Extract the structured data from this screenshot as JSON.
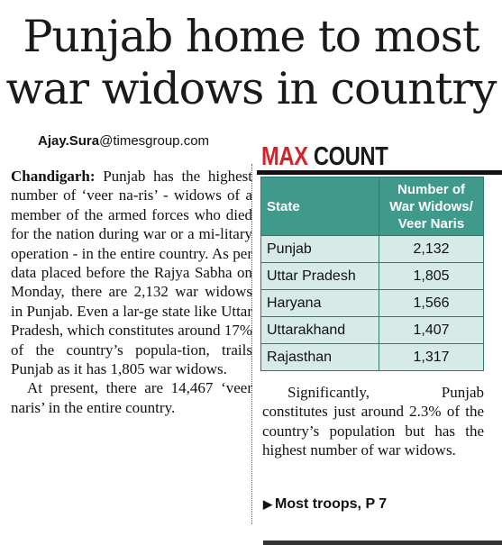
{
  "headline": {
    "line1": "Punjab home to most",
    "line2": "war widows in country"
  },
  "byline": {
    "name": "Ajay.Sura",
    "domain": "@timesgroup.com"
  },
  "article": {
    "dateline": "Chandigarh:",
    "paragraph1": " Punjab has the highest number of ‘veer na-ris’ - widows of a member of the armed forces who died for the nation during war or a mi-litary operation - in the entire country. As per data placed before the Rajya Sabha on Monday, there are 2,132 war widows in Punjab. Even a lar-ge state like Uttar Pradesh, which constitutes around 17% of the country’s popula-tion, trails Punjab as it has 1,805 war widows.",
    "paragraph2": "At present, there are 14,467 ‘veer naris’ in the entire country.",
    "paragraph3": "Significantly, Punjab constitutes just around 2.3% of the country’s population but has the highest number of war widows.",
    "continued": "Most troops, P 7",
    "continued_icon": "right-triangle-icon"
  },
  "box": {
    "title_red": "MAX",
    "title_dark": " COUNT",
    "accent_color": "#d2222b",
    "header_color": "#3f9a8c",
    "row_color": "#d6ebe7"
  },
  "chart_data": {
    "type": "table",
    "title": "MAX COUNT",
    "columns": [
      "State",
      "Number of War Widows/ Veer Naris"
    ],
    "rows": [
      {
        "state": "Punjab",
        "value": "2,132"
      },
      {
        "state": "Uttar Pradesh",
        "value": "1,805"
      },
      {
        "state": "Haryana",
        "value": "1,566"
      },
      {
        "state": "Uttarakhand",
        "value": "1,407"
      },
      {
        "state": "Rajasthan",
        "value": "1,317"
      }
    ]
  }
}
